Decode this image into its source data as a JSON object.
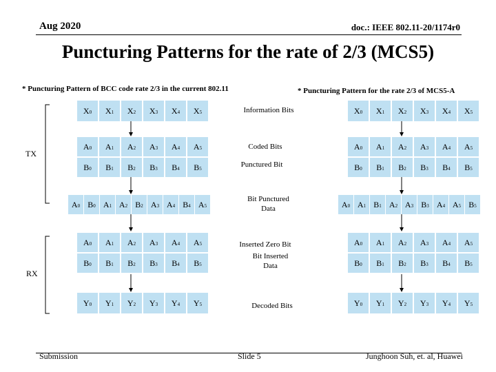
{
  "header": {
    "date": "Aug 2020",
    "doc": "doc.: IEEE 802.11-20/1174r0"
  },
  "title": "Puncturing Patterns for the rate of 2/3 (MCS5)",
  "subtitles": {
    "left": "* Puncturing Pattern of BCC code rate 2/3 in the current 802.11",
    "right": "* Puncturing Pattern for the rate 2/3 of MCS5-A"
  },
  "side_labels": {
    "tx": "TX",
    "rx": "RX"
  },
  "mid_labels": {
    "info": "Information Bits",
    "coded": "Coded Bits",
    "punctured": "Punctured Bit",
    "bit_punctured": "Bit Punctured Data",
    "inserted_zero": "Inserted Zero Bit",
    "bit_inserted": "Bit Inserted Data",
    "decoded": "Decoded Bits"
  },
  "footer": {
    "left": "Submission",
    "center": "Slide 5",
    "right": "Junghoon Suh, et. al, Huawei"
  },
  "left": {
    "info_row": [
      [
        "X",
        "0"
      ],
      [
        "X",
        "1"
      ],
      [
        "X",
        "2"
      ],
      [
        "X",
        "3"
      ],
      [
        "X",
        "4"
      ],
      [
        "X",
        "5"
      ]
    ],
    "a_row": [
      [
        "A",
        "0"
      ],
      [
        "A",
        "1"
      ],
      [
        "A",
        "2"
      ],
      [
        "A",
        "3"
      ],
      [
        "A",
        "4"
      ],
      [
        "A",
        "5"
      ]
    ],
    "b_row": [
      [
        "B",
        "0"
      ],
      [
        "B",
        "1"
      ],
      [
        "B",
        "2"
      ],
      [
        "B",
        "3"
      ],
      [
        "B",
        "4"
      ],
      [
        "B",
        "5"
      ]
    ],
    "punct_row": [
      [
        "A",
        "0"
      ],
      [
        "B",
        "0"
      ],
      [
        "A",
        "1"
      ],
      [
        "A",
        "2"
      ],
      [
        "B",
        "2"
      ],
      [
        "A",
        "3"
      ],
      [
        "A",
        "4"
      ],
      [
        "B",
        "4"
      ],
      [
        "A",
        "5"
      ]
    ],
    "rx_a_row": [
      [
        "A",
        "0"
      ],
      [
        "A",
        "1"
      ],
      [
        "A",
        "2"
      ],
      [
        "A",
        "3"
      ],
      [
        "A",
        "4"
      ],
      [
        "A",
        "5"
      ]
    ],
    "rx_b_row": [
      [
        "B",
        "0"
      ],
      [
        "B",
        "1"
      ],
      [
        "B",
        "2"
      ],
      [
        "B",
        "3"
      ],
      [
        "B",
        "4"
      ],
      [
        "B",
        "5"
      ]
    ],
    "dec_row": [
      [
        "Y",
        "0"
      ],
      [
        "Y",
        "1"
      ],
      [
        "Y",
        "2"
      ],
      [
        "Y",
        "3"
      ],
      [
        "Y",
        "4"
      ],
      [
        "Y",
        "5"
      ]
    ]
  },
  "right": {
    "info_row": [
      [
        "X",
        "0"
      ],
      [
        "X",
        "1"
      ],
      [
        "X",
        "2"
      ],
      [
        "X",
        "3"
      ],
      [
        "X",
        "4"
      ],
      [
        "X",
        "5"
      ]
    ],
    "a_row": [
      [
        "A",
        "0"
      ],
      [
        "A",
        "1"
      ],
      [
        "A",
        "2"
      ],
      [
        "A",
        "3"
      ],
      [
        "A",
        "4"
      ],
      [
        "A",
        "5"
      ]
    ],
    "b_row": [
      [
        "B",
        "0"
      ],
      [
        "B",
        "1"
      ],
      [
        "B",
        "2"
      ],
      [
        "B",
        "3"
      ],
      [
        "B",
        "4"
      ],
      [
        "B",
        "5"
      ]
    ],
    "punct_row": [
      [
        "A",
        "0"
      ],
      [
        "A",
        "1"
      ],
      [
        "B",
        "1"
      ],
      [
        "A",
        "2"
      ],
      [
        "A",
        "3"
      ],
      [
        "B",
        "3"
      ],
      [
        "A",
        "4"
      ],
      [
        "A",
        "5"
      ],
      [
        "B",
        "5"
      ]
    ],
    "rx_a_row": [
      [
        "A",
        "0"
      ],
      [
        "A",
        "1"
      ],
      [
        "A",
        "2"
      ],
      [
        "A",
        "3"
      ],
      [
        "A",
        "4"
      ],
      [
        "A",
        "5"
      ]
    ],
    "rx_b_row": [
      [
        "B",
        "0"
      ],
      [
        "B",
        "1"
      ],
      [
        "B",
        "2"
      ],
      [
        "B",
        "3"
      ],
      [
        "B",
        "4"
      ],
      [
        "B",
        "5"
      ]
    ],
    "dec_row": [
      [
        "Y",
        "0"
      ],
      [
        "Y",
        "1"
      ],
      [
        "Y",
        "2"
      ],
      [
        "Y",
        "3"
      ],
      [
        "Y",
        "4"
      ],
      [
        "Y",
        "5"
      ]
    ]
  },
  "colors": {
    "cell": "#bfe0f2",
    "punctured": "#1e7bb8",
    "arrow": "#000000"
  }
}
